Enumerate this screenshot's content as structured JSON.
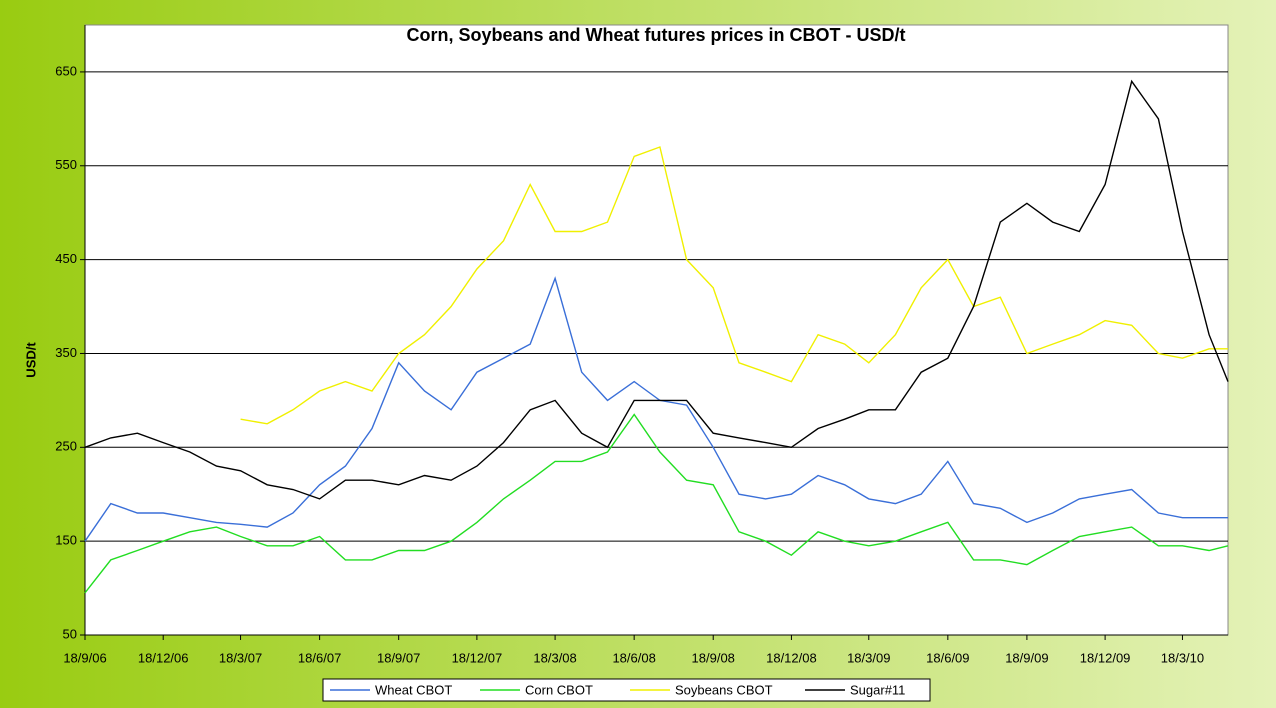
{
  "chart_data": {
    "type": "line",
    "title": "Corn, Soybeans and Wheat futures prices in CBOT - USD/t",
    "y_label": "USD/t",
    "x": [
      "2006-09-18",
      "2006-10-18",
      "2006-11-18",
      "2006-12-18",
      "2007-01-18",
      "2007-02-18",
      "2007-03-18",
      "2007-04-18",
      "2007-05-18",
      "2007-06-18",
      "2007-07-18",
      "2007-08-18",
      "2007-09-18",
      "2007-10-18",
      "2007-11-18",
      "2007-12-18",
      "2008-01-18",
      "2008-02-18",
      "2008-03-18",
      "2008-04-18",
      "2008-05-18",
      "2008-06-18",
      "2008-07-18",
      "2008-08-18",
      "2008-09-18",
      "2008-10-18",
      "2008-11-18",
      "2008-12-18",
      "2009-01-18",
      "2009-02-18",
      "2009-03-18",
      "2009-04-18",
      "2009-05-18",
      "2009-06-18",
      "2009-07-18",
      "2009-08-18",
      "2009-09-18",
      "2009-10-18",
      "2009-11-18",
      "2009-12-18",
      "2010-01-18",
      "2010-02-18",
      "2010-03-18",
      "2010-04-18",
      "2010-05-10"
    ],
    "series": [
      {
        "name": "Wheat CBOT",
        "color": "#3a6fd8",
        "values": [
          150,
          190,
          180,
          180,
          175,
          170,
          168,
          165,
          180,
          210,
          230,
          270,
          340,
          310,
          290,
          330,
          345,
          360,
          430,
          330,
          300,
          320,
          300,
          295,
          250,
          200,
          195,
          200,
          220,
          210,
          195,
          190,
          200,
          235,
          190,
          185,
          170,
          180,
          195,
          200,
          205,
          180,
          175,
          175,
          175
        ]
      },
      {
        "name": "Corn CBOT",
        "color": "#22dd22",
        "values": [
          95,
          130,
          140,
          150,
          160,
          165,
          155,
          145,
          145,
          155,
          130,
          130,
          140,
          140,
          150,
          170,
          195,
          215,
          235,
          235,
          245,
          285,
          245,
          215,
          210,
          160,
          150,
          135,
          160,
          150,
          145,
          150,
          160,
          170,
          130,
          130,
          125,
          140,
          155,
          160,
          165,
          145,
          145,
          140,
          145
        ]
      },
      {
        "name": "Soybeans CBOT",
        "color": "#f0f000",
        "values": [
          null,
          null,
          null,
          null,
          null,
          null,
          280,
          275,
          290,
          310,
          320,
          310,
          350,
          370,
          400,
          440,
          470,
          530,
          480,
          480,
          490,
          560,
          570,
          450,
          420,
          340,
          330,
          320,
          370,
          360,
          340,
          370,
          420,
          450,
          400,
          410,
          350,
          360,
          370,
          385,
          380,
          350,
          345,
          355,
          355
        ]
      },
      {
        "name": "Sugar#11",
        "color": "#000000",
        "values": [
          250,
          260,
          265,
          255,
          245,
          230,
          225,
          210,
          205,
          195,
          215,
          215,
          210,
          220,
          215,
          230,
          255,
          290,
          300,
          265,
          250,
          300,
          300,
          300,
          265,
          260,
          255,
          250,
          270,
          280,
          290,
          290,
          330,
          345,
          400,
          490,
          510,
          490,
          480,
          530,
          640,
          600,
          480,
          370,
          320
        ]
      }
    ],
    "xlim": [
      "2006-09-18",
      "2010-05-10"
    ],
    "xticks": [
      {
        "value": "2006-09-18",
        "label": "18/9/06"
      },
      {
        "value": "2006-12-18",
        "label": "18/12/06"
      },
      {
        "value": "2007-03-18",
        "label": "18/3/07"
      },
      {
        "value": "2007-06-18",
        "label": "18/6/07"
      },
      {
        "value": "2007-09-18",
        "label": "18/9/07"
      },
      {
        "value": "2007-12-18",
        "label": "18/12/07"
      },
      {
        "value": "2008-03-18",
        "label": "18/3/08"
      },
      {
        "value": "2008-06-18",
        "label": "18/6/08"
      },
      {
        "value": "2008-09-18",
        "label": "18/9/08"
      },
      {
        "value": "2008-12-18",
        "label": "18/12/08"
      },
      {
        "value": "2009-03-18",
        "label": "18/3/09"
      },
      {
        "value": "2009-06-18",
        "label": "18/6/09"
      },
      {
        "value": "2009-09-18",
        "label": "18/9/09"
      },
      {
        "value": "2009-12-18",
        "label": "18/12/09"
      },
      {
        "value": "2010-03-18",
        "label": "18/3/10"
      }
    ],
    "ylim": [
      50,
      700
    ],
    "yticks": [
      50,
      150,
      250,
      350,
      450,
      550,
      650
    ],
    "grid": true,
    "legend": "bottom"
  }
}
